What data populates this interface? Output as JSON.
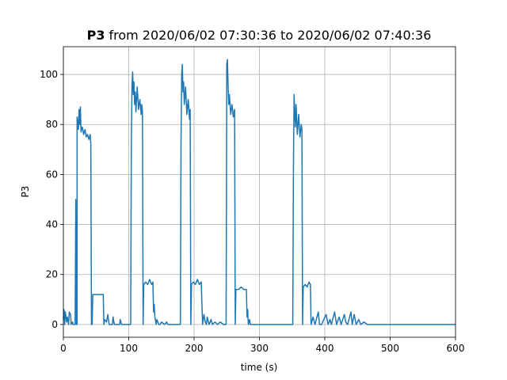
{
  "chart_data": {
    "type": "line",
    "title": {
      "bold": "P3",
      "text": "from 2020/06/02 07:30:36 to 2020/06/02 07:40:36"
    },
    "x_label": "time (s)",
    "y_label": "P3",
    "xlim": [
      0,
      600
    ],
    "ylim": [
      -5.1,
      111.1
    ],
    "xticks": [
      0,
      100,
      200,
      300,
      400,
      500,
      600
    ],
    "yticks": [
      0,
      20,
      40,
      60,
      80,
      100
    ],
    "grid": true,
    "series": [
      {
        "name": "P3",
        "color": "#1f77b4",
        "x": [
          0,
          1,
          2,
          3,
          5,
          6,
          8,
          9,
          11,
          12,
          14,
          15,
          18,
          19,
          20,
          21,
          21,
          23,
          24,
          25,
          26,
          27,
          29,
          31,
          33,
          35,
          37,
          39,
          41,
          42,
          43,
          44,
          45,
          50,
          55,
          60,
          61,
          62,
          63,
          66,
          68,
          70,
          75,
          76,
          78,
          80,
          86,
          87,
          89,
          102,
          103,
          104,
          105,
          106,
          107,
          108,
          109,
          110,
          111,
          113,
          115,
          117,
          119,
          120,
          121,
          122,
          123,
          126,
          129,
          132,
          135,
          137,
          138,
          139,
          140,
          142,
          143,
          146,
          148,
          150,
          155,
          158,
          160,
          165,
          170,
          175,
          178,
          179,
          180,
          181,
          182,
          183,
          184,
          185,
          187,
          189,
          191,
          193,
          194,
          195,
          196,
          199,
          202,
          205,
          208,
          211,
          212,
          213,
          215,
          217,
          219,
          220,
          223,
          226,
          228,
          232,
          236,
          240,
          245,
          248,
          249,
          250,
          251,
          252,
          253,
          254,
          256,
          258,
          260,
          262,
          263,
          264,
          268,
          272,
          276,
          280,
          281,
          282,
          283,
          285,
          286,
          300,
          320,
          340,
          350,
          351,
          352,
          353,
          354,
          355,
          356,
          358,
          360,
          362,
          364,
          365,
          366,
          367,
          370,
          373,
          376,
          378,
          379,
          382,
          385,
          390,
          392,
          395,
          402,
          405,
          408,
          410,
          415,
          418,
          422,
          425,
          430,
          432,
          435,
          440,
          442,
          445,
          448,
          452,
          455,
          460,
          465,
          470,
          500,
          550,
          600
        ],
        "values": [
          2,
          6,
          0,
          5,
          1,
          3,
          0,
          5,
          4,
          0,
          1,
          0,
          0,
          50,
          0,
          0,
          83,
          78,
          86,
          80,
          87,
          77,
          79,
          76,
          78,
          75,
          76,
          74,
          76,
          72,
          0,
          0,
          12,
          12,
          12,
          12,
          12,
          0,
          2,
          1,
          4,
          0,
          0,
          3,
          0,
          0,
          0,
          2,
          0,
          0,
          0,
          73,
          96,
          101,
          92,
          97,
          88,
          93,
          85,
          95,
          86,
          90,
          84,
          88,
          85,
          0,
          16,
          17,
          16,
          18,
          16,
          17,
          5,
          8,
          3,
          0,
          2,
          0,
          0,
          1,
          0,
          1,
          0,
          0,
          0,
          0,
          0,
          0,
          72,
          100,
          104,
          93,
          97,
          88,
          95,
          84,
          90,
          82,
          86,
          0,
          16,
          17,
          16,
          18,
          16,
          17,
          8,
          0,
          4,
          1,
          0,
          3,
          0,
          2,
          0,
          1,
          0,
          1,
          0,
          0,
          0,
          104,
          106,
          96,
          88,
          92,
          84,
          88,
          83,
          86,
          0,
          14,
          14,
          15,
          14,
          14,
          3,
          6,
          0,
          2,
          0,
          0,
          0,
          0,
          0,
          0,
          62,
          92,
          85,
          79,
          88,
          76,
          84,
          75,
          80,
          78,
          0,
          15,
          16,
          15,
          17,
          16,
          0,
          3,
          0,
          5,
          0,
          0,
          4,
          0,
          2,
          0,
          5,
          0,
          3,
          0,
          4,
          1,
          0,
          5,
          0,
          4,
          0,
          2,
          0,
          1,
          0,
          0,
          0,
          0,
          0
        ]
      }
    ]
  }
}
